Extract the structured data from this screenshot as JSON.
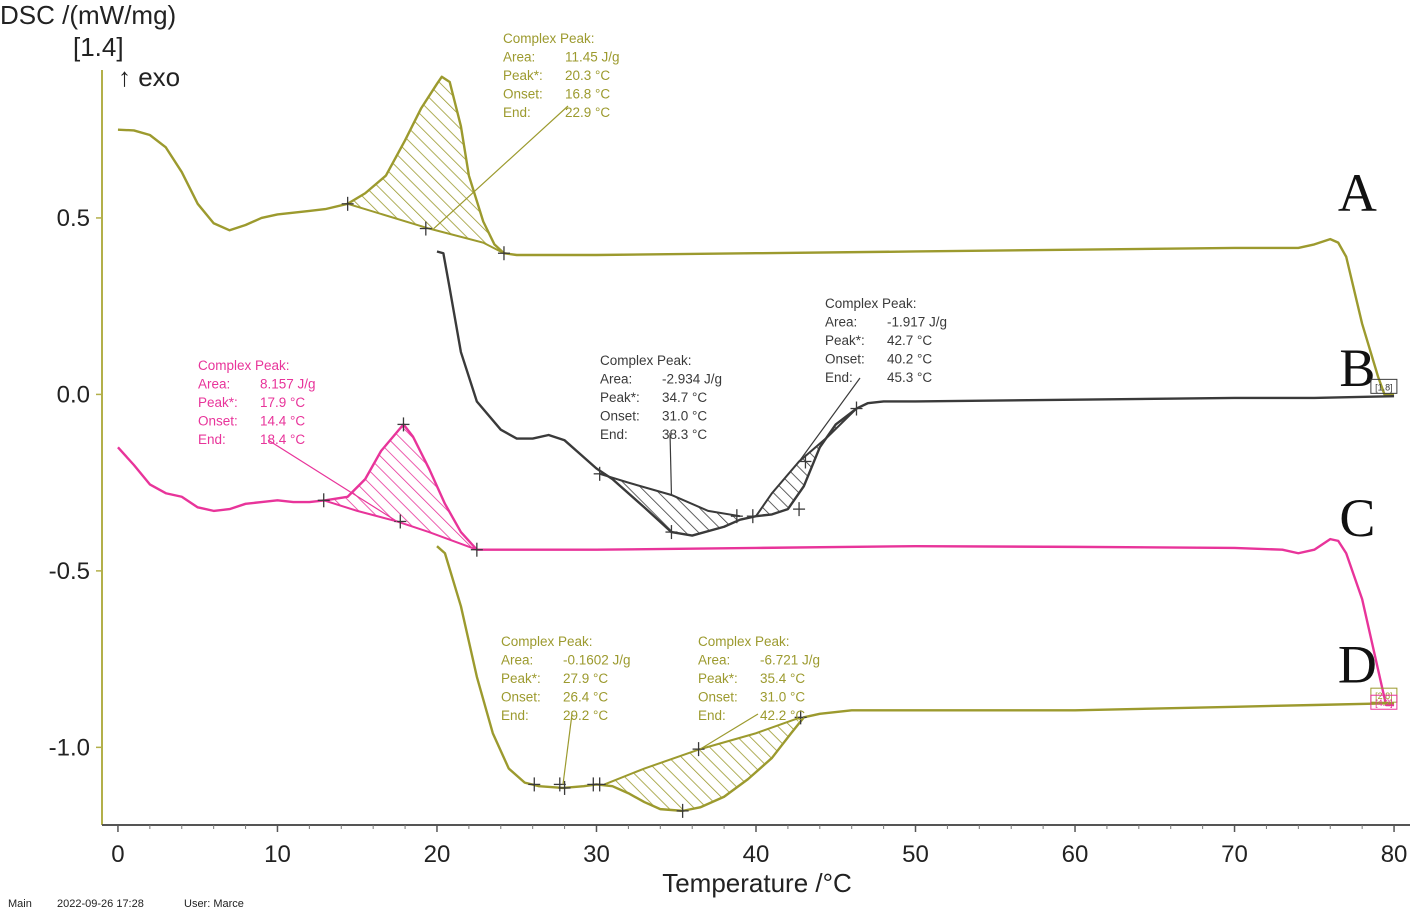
{
  "chart_data": {
    "type": "line",
    "ylabel": "DSC /(mW/mg)",
    "ylabel_extra": [
      "[1.4]",
      "↑ exo"
    ],
    "xlabel": "Temperature /°C",
    "xlim": [
      -1,
      81
    ],
    "ylim": [
      -1.22,
      0.99
    ],
    "x_ticks": [
      0,
      10,
      20,
      30,
      40,
      50,
      60,
      70,
      80
    ],
    "x_tick_labels": [
      "0",
      "10",
      "20",
      "30",
      "40",
      "50",
      "60",
      "70",
      "80"
    ],
    "y_ticks": [
      0.5,
      0.0,
      -0.5,
      -1.0
    ],
    "y_tick_labels": [
      "0.5",
      "0.0",
      "-0.5",
      "-1.0"
    ],
    "grid": false,
    "series": [
      {
        "name": "A",
        "color": "#9c9a2e",
        "points": [
          [
            0,
            0.75
          ],
          [
            1,
            0.748
          ],
          [
            2,
            0.735
          ],
          [
            3,
            0.7
          ],
          [
            4,
            0.63
          ],
          [
            5,
            0.54
          ],
          [
            6,
            0.485
          ],
          [
            7,
            0.465
          ],
          [
            8,
            0.48
          ],
          [
            9,
            0.5
          ],
          [
            10,
            0.51
          ],
          [
            11,
            0.515
          ],
          [
            12,
            0.52
          ],
          [
            13,
            0.525
          ],
          [
            14.4,
            0.54
          ],
          [
            15.5,
            0.57
          ],
          [
            16.8,
            0.62
          ],
          [
            18,
            0.72
          ],
          [
            19,
            0.81
          ],
          [
            20,
            0.88
          ],
          [
            20.3,
            0.9
          ],
          [
            20.8,
            0.885
          ],
          [
            21.5,
            0.76
          ],
          [
            22,
            0.62
          ],
          [
            22.9,
            0.49
          ],
          [
            23.6,
            0.425
          ],
          [
            24.2,
            0.4
          ],
          [
            25,
            0.395
          ],
          [
            30,
            0.395
          ],
          [
            40,
            0.4
          ],
          [
            50,
            0.405
          ],
          [
            60,
            0.41
          ],
          [
            70,
            0.415
          ],
          [
            74,
            0.415
          ],
          [
            75,
            0.425
          ],
          [
            76,
            0.44
          ],
          [
            76.5,
            0.43
          ],
          [
            77,
            0.39
          ],
          [
            78,
            0.2
          ],
          [
            79,
            0.05
          ],
          [
            79.4,
            0.0
          ],
          [
            80,
            0.0
          ]
        ]
      },
      {
        "name": "B",
        "color": "#3a3a3a",
        "points": [
          [
            20,
            0.405
          ],
          [
            20.4,
            0.4
          ],
          [
            20.8,
            0.3
          ],
          [
            21.5,
            0.12
          ],
          [
            22.5,
            -0.02
          ],
          [
            24,
            -0.1
          ],
          [
            25,
            -0.125
          ],
          [
            26,
            -0.125
          ],
          [
            27,
            -0.115
          ],
          [
            28,
            -0.13
          ],
          [
            29,
            -0.17
          ],
          [
            30,
            -0.21
          ],
          [
            31,
            -0.24
          ],
          [
            33,
            -0.32
          ],
          [
            34.7,
            -0.39
          ],
          [
            36,
            -0.4
          ],
          [
            38,
            -0.375
          ],
          [
            39,
            -0.355
          ],
          [
            40,
            -0.345
          ],
          [
            41,
            -0.34
          ],
          [
            42,
            -0.325
          ],
          [
            43,
            -0.26
          ],
          [
            44,
            -0.15
          ],
          [
            45,
            -0.085
          ],
          [
            46.3,
            -0.04
          ],
          [
            47,
            -0.025
          ],
          [
            48,
            -0.02
          ],
          [
            50,
            -0.02
          ],
          [
            60,
            -0.015
          ],
          [
            70,
            -0.01
          ],
          [
            75,
            -0.01
          ],
          [
            80,
            -0.005
          ]
        ]
      },
      {
        "name": "C",
        "color": "#e8349a",
        "points": [
          [
            0,
            -0.15
          ],
          [
            1,
            -0.2
          ],
          [
            2,
            -0.255
          ],
          [
            3,
            -0.28
          ],
          [
            4,
            -0.29
          ],
          [
            5,
            -0.32
          ],
          [
            6,
            -0.33
          ],
          [
            7,
            -0.325
          ],
          [
            8,
            -0.31
          ],
          [
            9,
            -0.305
          ],
          [
            10,
            -0.3
          ],
          [
            11,
            -0.305
          ],
          [
            12,
            -0.305
          ],
          [
            13,
            -0.3
          ],
          [
            14.4,
            -0.29
          ],
          [
            15.5,
            -0.24
          ],
          [
            16.5,
            -0.16
          ],
          [
            17.9,
            -0.085
          ],
          [
            18.5,
            -0.12
          ],
          [
            19.5,
            -0.21
          ],
          [
            20.5,
            -0.31
          ],
          [
            21.5,
            -0.39
          ],
          [
            22.5,
            -0.44
          ],
          [
            23,
            -0.44
          ],
          [
            30,
            -0.44
          ],
          [
            40,
            -0.435
          ],
          [
            50,
            -0.43
          ],
          [
            60,
            -0.432
          ],
          [
            70,
            -0.435
          ],
          [
            73,
            -0.44
          ],
          [
            74,
            -0.45
          ],
          [
            75,
            -0.44
          ],
          [
            76,
            -0.41
          ],
          [
            76.5,
            -0.415
          ],
          [
            77,
            -0.45
          ],
          [
            78,
            -0.58
          ],
          [
            79,
            -0.78
          ],
          [
            79.5,
            -0.88
          ],
          [
            80,
            -0.88
          ]
        ]
      },
      {
        "name": "D",
        "color": "#9c9a2e",
        "points": [
          [
            20,
            -0.43
          ],
          [
            20.5,
            -0.45
          ],
          [
            21.5,
            -0.6
          ],
          [
            22.5,
            -0.8
          ],
          [
            23.5,
            -0.96
          ],
          [
            24.5,
            -1.06
          ],
          [
            25.5,
            -1.1
          ],
          [
            26.4,
            -1.11
          ],
          [
            27.9,
            -1.115
          ],
          [
            29.2,
            -1.11
          ],
          [
            30,
            -1.105
          ],
          [
            31,
            -1.11
          ],
          [
            32,
            -1.13
          ],
          [
            33,
            -1.155
          ],
          [
            34,
            -1.175
          ],
          [
            35.4,
            -1.18
          ],
          [
            36.5,
            -1.17
          ],
          [
            38,
            -1.14
          ],
          [
            39.5,
            -1.09
          ],
          [
            41,
            -1.03
          ],
          [
            42.2,
            -0.96
          ],
          [
            43,
            -0.915
          ],
          [
            44,
            -0.905
          ],
          [
            46,
            -0.895
          ],
          [
            50,
            -0.895
          ],
          [
            60,
            -0.895
          ],
          [
            70,
            -0.885
          ],
          [
            75,
            -0.88
          ],
          [
            80,
            -0.875
          ]
        ]
      }
    ],
    "hatched_peaks": [
      {
        "series": "A",
        "color": "#9c9a2e",
        "outer": [
          [
            14.4,
            0.54
          ],
          [
            15.5,
            0.57
          ],
          [
            16.8,
            0.62
          ],
          [
            18,
            0.72
          ],
          [
            19,
            0.81
          ],
          [
            20,
            0.88
          ],
          [
            20.3,
            0.9
          ],
          [
            20.8,
            0.885
          ],
          [
            21.5,
            0.76
          ],
          [
            22,
            0.62
          ],
          [
            22.9,
            0.49
          ],
          [
            23.6,
            0.425
          ],
          [
            24.2,
            0.4
          ]
        ],
        "inner": [
          [
            24.2,
            0.4
          ],
          [
            22.9,
            0.43
          ],
          [
            19.5,
            0.47
          ],
          [
            14.4,
            0.54
          ]
        ]
      },
      {
        "series": "B",
        "color": "#3a3a3a",
        "outer": [
          [
            30.2,
            -0.225
          ],
          [
            31,
            -0.24
          ],
          [
            33,
            -0.32
          ],
          [
            34.7,
            -0.39
          ],
          [
            36,
            -0.4
          ],
          [
            38,
            -0.375
          ],
          [
            39,
            -0.355
          ]
        ],
        "inner": [
          [
            39,
            -0.345
          ],
          [
            37,
            -0.33
          ],
          [
            34.7,
            -0.285
          ],
          [
            32,
            -0.25
          ],
          [
            30.2,
            -0.225
          ]
        ]
      },
      {
        "series": "B",
        "color": "#3a3a3a",
        "outer": [
          [
            40,
            -0.345
          ],
          [
            41,
            -0.34
          ],
          [
            42,
            -0.325
          ],
          [
            43,
            -0.26
          ],
          [
            44,
            -0.15
          ],
          [
            45,
            -0.085
          ],
          [
            46.3,
            -0.04
          ]
        ],
        "inner": [
          [
            46.3,
            -0.04
          ],
          [
            44.5,
            -0.12
          ],
          [
            42.7,
            -0.19
          ],
          [
            41,
            -0.28
          ],
          [
            40,
            -0.345
          ]
        ]
      },
      {
        "series": "C",
        "color": "#e8349a",
        "outer": [
          [
            12.9,
            -0.3
          ],
          [
            14.4,
            -0.29
          ],
          [
            15.5,
            -0.24
          ],
          [
            16.5,
            -0.16
          ],
          [
            17.9,
            -0.085
          ],
          [
            18.5,
            -0.12
          ],
          [
            19.5,
            -0.21
          ],
          [
            20.5,
            -0.31
          ],
          [
            21.5,
            -0.39
          ],
          [
            22.5,
            -0.44
          ]
        ],
        "inner": [
          [
            22.5,
            -0.44
          ],
          [
            19.5,
            -0.39
          ],
          [
            17.5,
            -0.36
          ],
          [
            15,
            -0.33
          ],
          [
            12.9,
            -0.3
          ]
        ]
      },
      {
        "series": "D",
        "color": "#9c9a2e",
        "outer": [
          [
            30.5,
            -1.105
          ],
          [
            31,
            -1.11
          ],
          [
            32,
            -1.13
          ],
          [
            33,
            -1.155
          ],
          [
            34,
            -1.175
          ],
          [
            35.4,
            -1.18
          ],
          [
            36.5,
            -1.17
          ],
          [
            38,
            -1.14
          ],
          [
            39.5,
            -1.09
          ],
          [
            41,
            -1.03
          ],
          [
            42.2,
            -0.96
          ],
          [
            42.8,
            -0.915
          ]
        ],
        "inner": [
          [
            42.8,
            -0.915
          ],
          [
            40,
            -0.96
          ],
          [
            36.5,
            -1.005
          ],
          [
            33,
            -1.06
          ],
          [
            30.5,
            -1.105
          ]
        ]
      }
    ],
    "markers": [
      {
        "x": 14.4,
        "y": 0.54,
        "color": "#3a3a3a"
      },
      {
        "x": 19.3,
        "y": 0.47,
        "color": "#3a3a3a"
      },
      {
        "x": 24.2,
        "y": 0.4,
        "color": "#3a3a3a"
      },
      {
        "x": 30.2,
        "y": -0.225,
        "color": "#3a3a3a"
      },
      {
        "x": 34.7,
        "y": -0.39,
        "color": "#3a3a3a"
      },
      {
        "x": 38.8,
        "y": -0.345,
        "color": "#3a3a3a"
      },
      {
        "x": 39.8,
        "y": -0.345,
        "color": "#3a3a3a"
      },
      {
        "x": 42.7,
        "y": -0.325,
        "color": "#3a3a3a"
      },
      {
        "x": 43.1,
        "y": -0.19,
        "color": "#3a3a3a"
      },
      {
        "x": 46.3,
        "y": -0.04,
        "color": "#3a3a3a"
      },
      {
        "x": 12.9,
        "y": -0.3,
        "color": "#3a3a3a"
      },
      {
        "x": 17.7,
        "y": -0.36,
        "color": "#3a3a3a"
      },
      {
        "x": 17.9,
        "y": -0.085,
        "color": "#3a3a3a"
      },
      {
        "x": 22.5,
        "y": -0.44,
        "color": "#3a3a3a"
      },
      {
        "x": 26.1,
        "y": -1.105,
        "color": "#3a3a3a"
      },
      {
        "x": 27.7,
        "y": -1.105,
        "color": "#3a3a3a"
      },
      {
        "x": 28.0,
        "y": -1.115,
        "color": "#3a3a3a"
      },
      {
        "x": 29.8,
        "y": -1.105,
        "color": "#3a3a3a"
      },
      {
        "x": 30.2,
        "y": -1.105,
        "color": "#3a3a3a"
      },
      {
        "x": 35.4,
        "y": -1.18,
        "color": "#3a3a3a"
      },
      {
        "x": 36.4,
        "y": -1.005,
        "color": "#3a3a3a"
      },
      {
        "x": 42.8,
        "y": -0.915,
        "color": "#3a3a3a"
      }
    ],
    "annotations": [
      {
        "series": "A",
        "color": "#9c9a2e",
        "title": "Complex Peak:",
        "area_label": "Area:",
        "area": "11.45 J/g",
        "peak_label": "Peak*:",
        "peak": "20.3 °C",
        "onset_label": "Onset:",
        "onset": "16.8 °C",
        "end_label": "End:",
        "end": "22.9 °C",
        "anchor": [
          19.8,
          0.47
        ]
      },
      {
        "series": "B",
        "color": "#3a3a3a",
        "title": "Complex Peak:",
        "area_label": "Area:",
        "area": "-2.934 J/g",
        "peak_label": "Peak*:",
        "peak": "34.7 °C",
        "onset_label": "Onset:",
        "onset": "31.0 °C",
        "end_label": "End:",
        "end": "38.3 °C",
        "anchor": [
          34.7,
          -0.285
        ]
      },
      {
        "series": "B",
        "color": "#3a3a3a",
        "title": "Complex Peak:",
        "area_label": "Area:",
        "area": "-1.917 J/g",
        "peak_label": "Peak*:",
        "peak": "42.7 °C",
        "onset_label": "Onset:",
        "onset": "40.2 °C",
        "end_label": "End:",
        "end": "45.3 °C",
        "anchor": [
          42.7,
          -0.19
        ]
      },
      {
        "series": "C",
        "color": "#e8349a",
        "title": "Complex Peak:",
        "area_label": "Area:",
        "area": "8.157 J/g",
        "peak_label": "Peak*:",
        "peak": "17.9 °C",
        "onset_label": "Onset:",
        "onset": "14.4 °C",
        "end_label": "End:",
        "end": "18.4 °C",
        "anchor": [
          17.5,
          -0.36
        ]
      },
      {
        "series": "D",
        "color": "#9c9a2e",
        "title": "Complex Peak:",
        "area_label": "Area:",
        "area": "-0.1602 J/g",
        "peak_label": "Peak*:",
        "peak": "27.9 °C",
        "onset_label": "Onset:",
        "onset": "26.4 °C",
        "end_label": "End:",
        "end": "29.2 °C",
        "anchor": [
          27.9,
          -1.105
        ]
      },
      {
        "series": "D",
        "color": "#9c9a2e",
        "title": "Complex Peak:",
        "area_label": "Area:",
        "area": "-6.721 J/g",
        "peak_label": "Peak*:",
        "peak": "35.4 °C",
        "onset_label": "Onset:",
        "onset": "31.0 °C",
        "end_label": "End:",
        "end": "42.2 °C",
        "anchor": [
          36.5,
          -1.005
        ]
      }
    ],
    "curve_labels": [
      {
        "text": "A",
        "x": 77.7,
        "y": 0.57
      },
      {
        "text": "B",
        "x": 77.7,
        "y": 0.075
      },
      {
        "text": "C",
        "x": 77.7,
        "y": -0.35
      },
      {
        "text": "D",
        "x": 77.7,
        "y": -0.765
      }
    ],
    "end_tags": [
      {
        "text": "[1.8]",
        "color": "#3a3a3a",
        "x": 79.3,
        "y": 0.02
      },
      {
        "text": "[2.8]",
        "color": "#9c9a2e",
        "x": 79.3,
        "y": -0.855
      },
      {
        "text": "[4.2]",
        "color": "#e8349a",
        "x": 79.3,
        "y": -0.875
      }
    ],
    "footer": [
      "Main",
      "2022-09-26 17:28",
      "User: Marce"
    ]
  }
}
